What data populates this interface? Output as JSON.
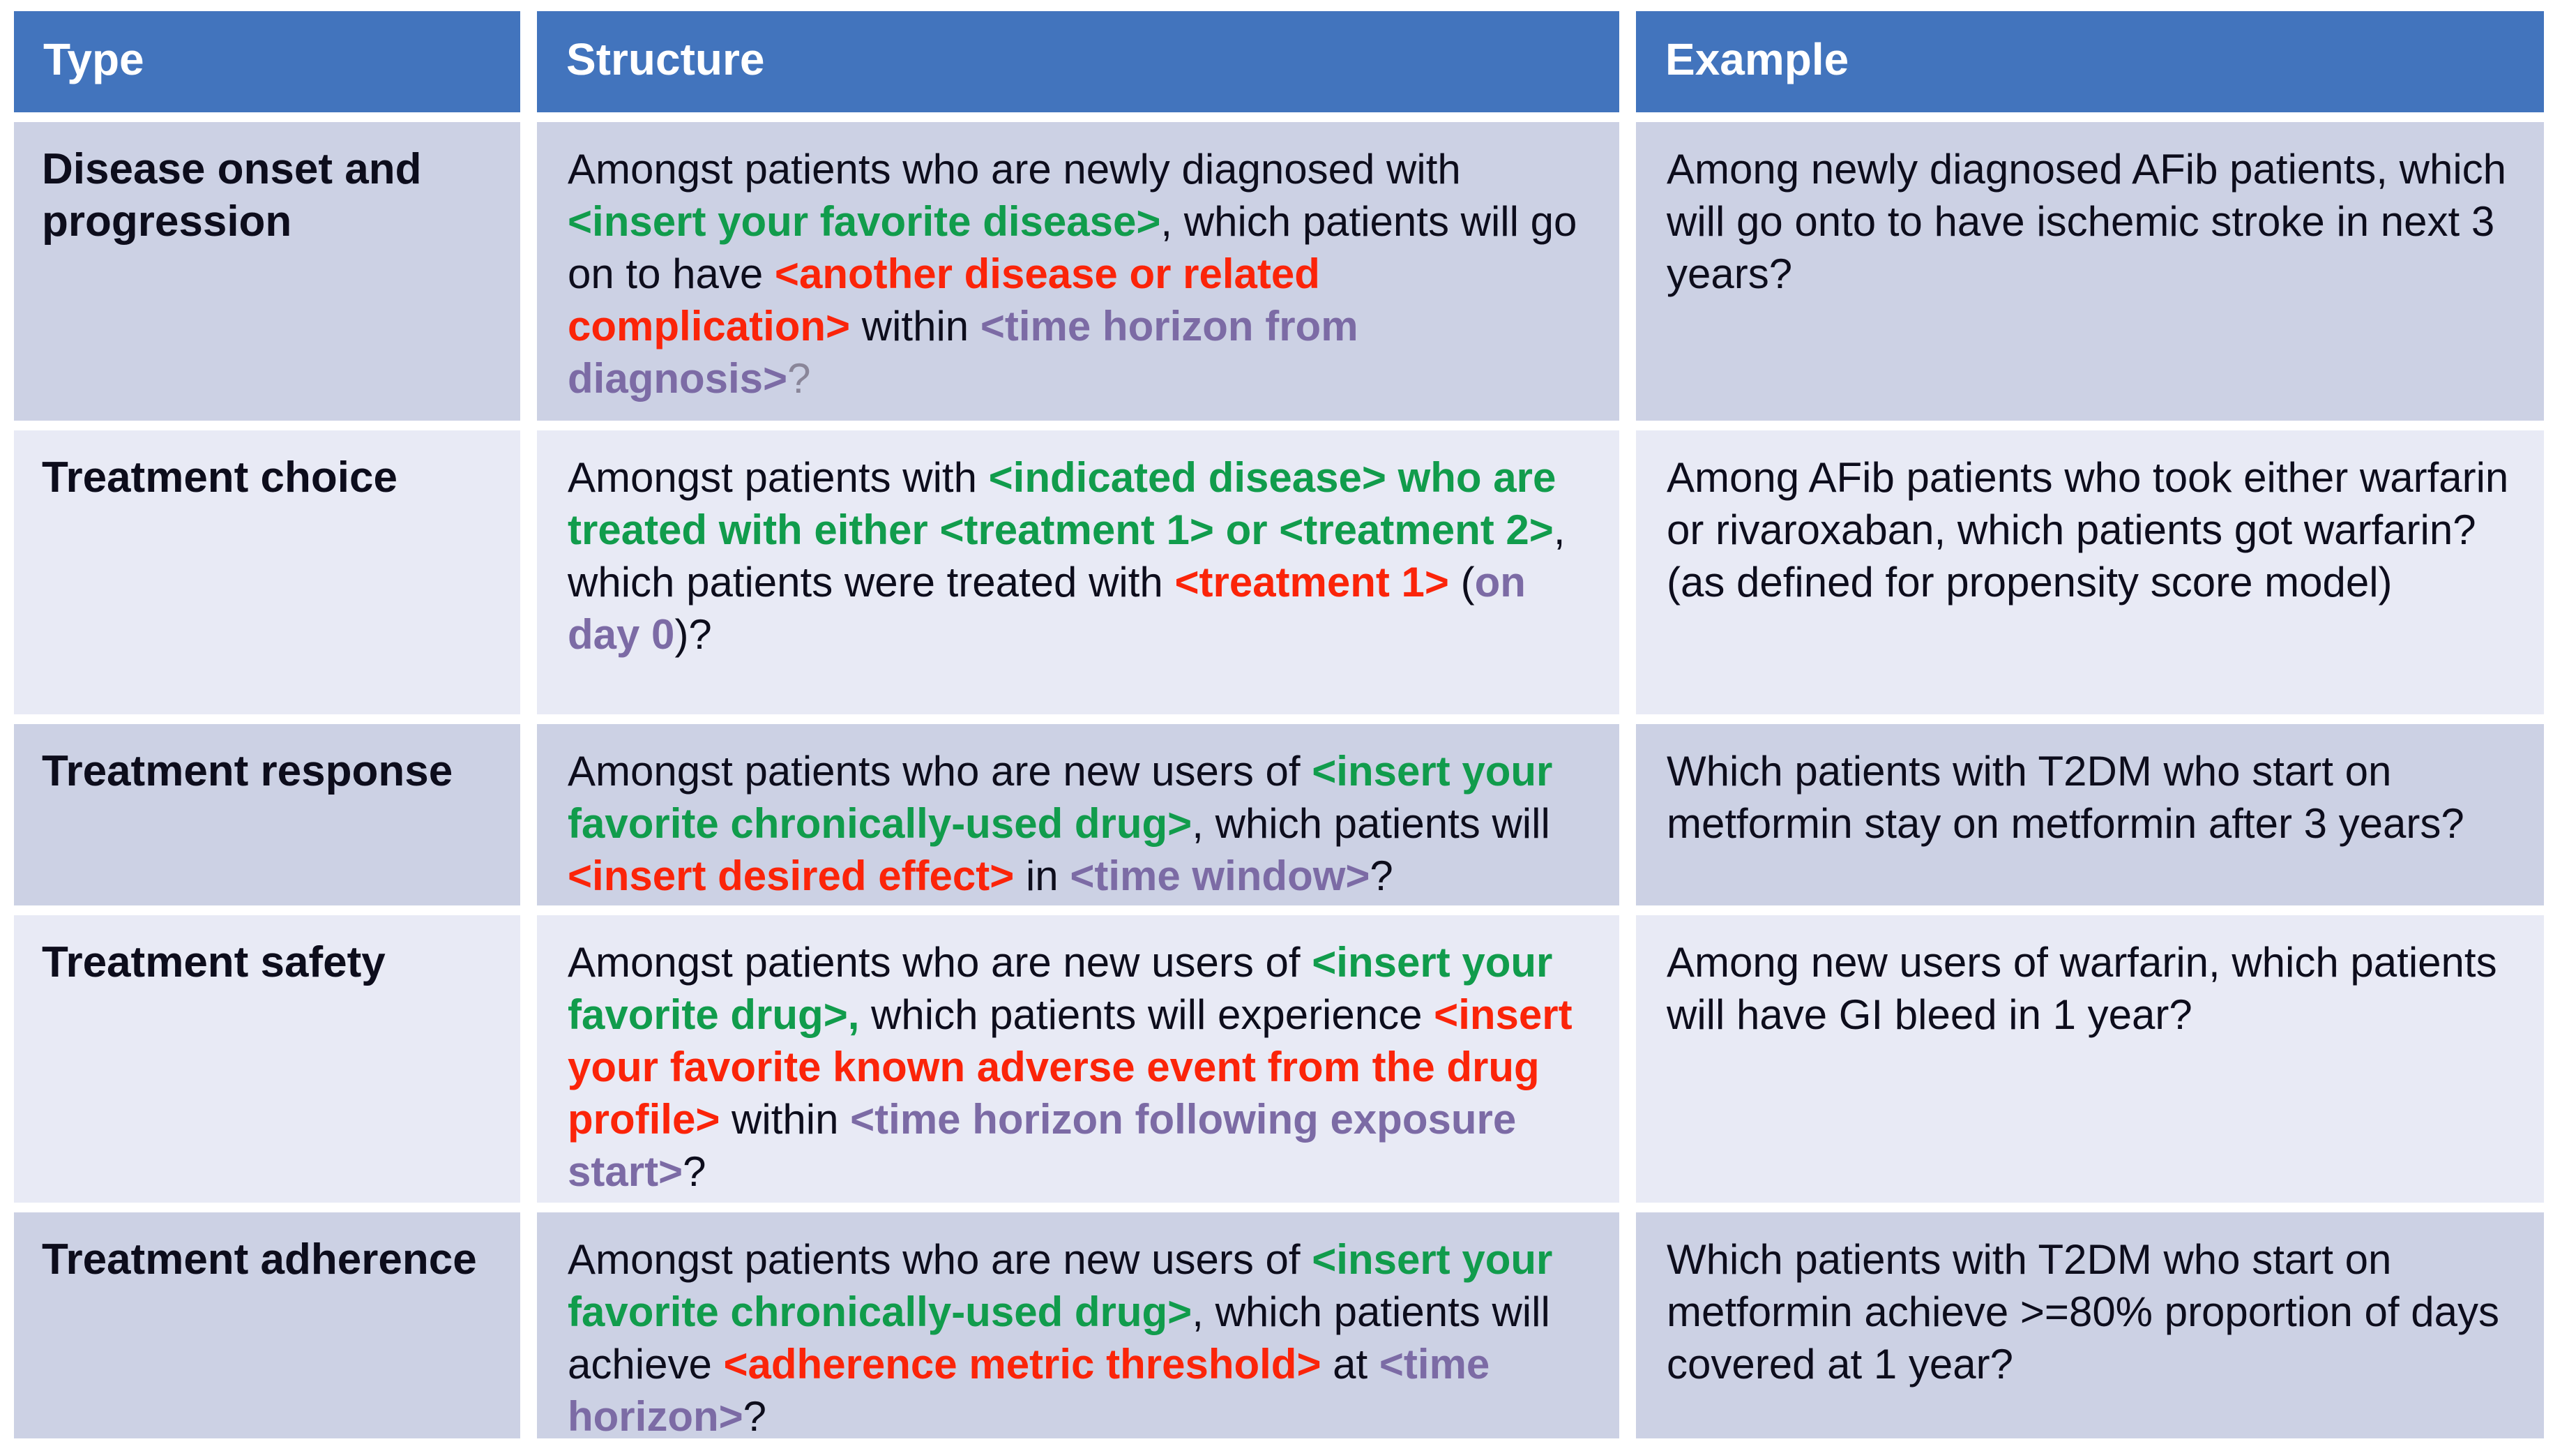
{
  "colors": {
    "header_bg": "#4274BD",
    "header_text": "#FFFFFF",
    "row_a": "#CCD1E4",
    "row_b": "#E8EAF5",
    "dark": "#0D0D1C",
    "green": "#119C4C",
    "red": "#FB2409",
    "purple": "#7C6BA5",
    "gray": "#8A8699"
  },
  "table": {
    "headers": [
      "Type",
      "Structure",
      "Example"
    ],
    "rows": [
      {
        "type": "Disease onset and progression",
        "structure": [
          {
            "text": "Amongst patients who are newly diagnosed with ",
            "style": "plain"
          },
          {
            "text": "<insert your favorite disease>",
            "style": "green"
          },
          {
            "text": ", which patients will go on to have ",
            "style": "plain"
          },
          {
            "text": "<another disease or related complication>",
            "style": "red"
          },
          {
            "text": " within ",
            "style": "plain"
          },
          {
            "text": "<time horizon from diagnosis>",
            "style": "purple"
          },
          {
            "text": "?",
            "style": "gray"
          }
        ],
        "example": "Among newly diagnosed AFib patients, which will go onto to have ischemic stroke in next 3 years?"
      },
      {
        "type": "Treatment choice",
        "structure": [
          {
            "text": "Amongst patients with ",
            "style": "plain"
          },
          {
            "text": "<indicated disease> who are treated with either <treatment 1> or <treatment 2>",
            "style": "green"
          },
          {
            "text": ", which patients were treated with ",
            "style": "plain"
          },
          {
            "text": "<treatment 1>",
            "style": "red"
          },
          {
            "text": " (",
            "style": "plain"
          },
          {
            "text": "on day 0",
            "style": "purple"
          },
          {
            "text": ")?",
            "style": "plain"
          }
        ],
        "example": "Among AFib patients who took either warfarin or rivaroxaban, which patients got warfarin?   (as defined for propensity score model)"
      },
      {
        "type": "Treatment response",
        "structure": [
          {
            "text": "Amongst patients who are new users of ",
            "style": "plain"
          },
          {
            "text": "<insert your favorite chronically-used drug>",
            "style": "green"
          },
          {
            "text": ", which patients will ",
            "style": "plain"
          },
          {
            "text": "<insert desired effect>",
            "style": "red"
          },
          {
            "text": " in ",
            "style": "plain"
          },
          {
            "text": "<time window>",
            "style": "purple"
          },
          {
            "text": "?",
            "style": "plain"
          }
        ],
        "example": "Which patients with T2DM who start on metformin stay on metformin after 3 years?"
      },
      {
        "type": "Treatment safety",
        "structure": [
          {
            "text": "Amongst patients who are new users of ",
            "style": "plain"
          },
          {
            "text": "<insert your favorite drug>,",
            "style": "green"
          },
          {
            "text": " which patients will experience ",
            "style": "plain"
          },
          {
            "text": "<insert your favorite known adverse event from the drug profile>",
            "style": "red"
          },
          {
            "text": " within ",
            "style": "plain"
          },
          {
            "text": "<time horizon following exposure start>",
            "style": "purple"
          },
          {
            "text": "?",
            "style": "plain"
          }
        ],
        "example": "Among new users of warfarin, which patients will have GI bleed in 1 year?"
      },
      {
        "type": "Treatment adherence",
        "structure": [
          {
            "text": "Amongst patients who are new users of ",
            "style": "plain"
          },
          {
            "text": "<insert your favorite chronically-used drug>",
            "style": "green"
          },
          {
            "text": ", which patients will achieve ",
            "style": "plain"
          },
          {
            "text": "<adherence metric threshold>",
            "style": "red"
          },
          {
            "text": " at ",
            "style": "plain"
          },
          {
            "text": "<time horizon>",
            "style": "purple"
          },
          {
            "text": "?",
            "style": "plain"
          }
        ],
        "example": "Which patients with T2DM who start on metformin achieve >=80% proportion of days covered at 1 year?"
      }
    ]
  }
}
